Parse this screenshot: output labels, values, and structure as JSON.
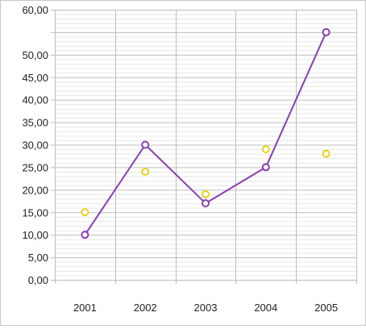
{
  "chart_data": {
    "type": "line",
    "categories": [
      "2001",
      "2002",
      "2003",
      "2004",
      "2005"
    ],
    "y_ticks": [
      "0,00",
      "5,00",
      "10,00",
      "15,00",
      "20,00",
      "25,00",
      "30,00",
      "35,00",
      "40,00",
      "45,00",
      "50,00",
      "60,00"
    ],
    "ylim": [
      0,
      60
    ],
    "grid": true,
    "legend": "none",
    "series": [
      {
        "style": "line-with-markers",
        "color": "#8a3fb0",
        "values": [
          10,
          30,
          17,
          25,
          55
        ]
      },
      {
        "style": "markers-only",
        "color": "#e8d21a",
        "values": [
          15,
          24,
          19,
          29,
          28
        ]
      }
    ]
  }
}
